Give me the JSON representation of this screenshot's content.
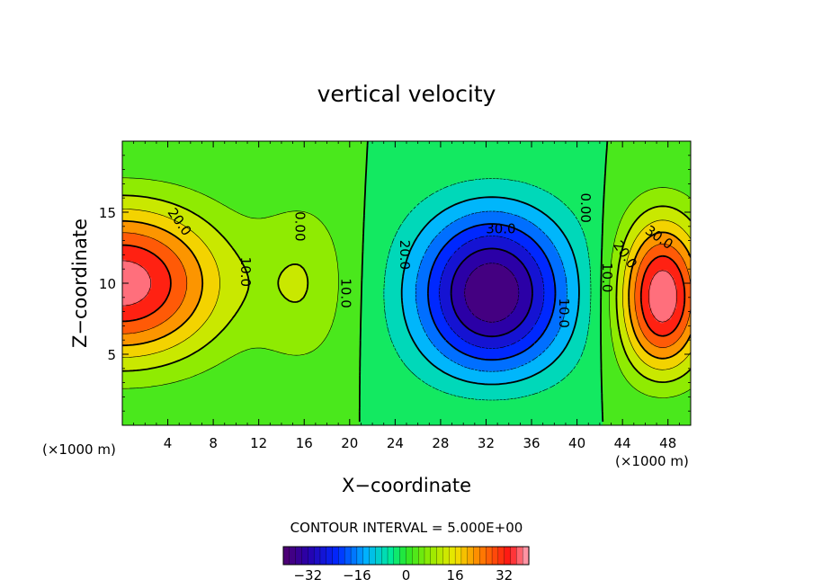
{
  "chart_data": {
    "type": "heatmap",
    "title": "vertical velocity",
    "xlabel": "X−coordinate",
    "ylabel": "Z−coordinate",
    "x_unit_left": "(×1000 m)",
    "x_unit_right": "(×1000 m)",
    "xlim": [
      0,
      50
    ],
    "ylim": [
      0,
      20
    ],
    "x_ticks": [
      "4",
      "8",
      "12",
      "16",
      "20",
      "24",
      "28",
      "32",
      "36",
      "40",
      "44",
      "48"
    ],
    "x_tick_values": [
      4,
      8,
      12,
      16,
      20,
      24,
      28,
      32,
      36,
      40,
      44,
      48
    ],
    "y_ticks": [
      "5",
      "10",
      "15"
    ],
    "y_tick_values": [
      5,
      10,
      15
    ],
    "contour_interval_text": "CONTOUR INTERVAL = 5.000E+00",
    "contour_interval": 5,
    "colorbar_range": [
      -40,
      40
    ],
    "colorbar_ticks": [
      "−32",
      "−16",
      "0",
      "16",
      "32"
    ],
    "colorbar_tick_values": [
      -32,
      -16,
      0,
      16,
      32
    ],
    "contour_labels": [
      {
        "text": "20.0",
        "x": 5.0,
        "z": 14.3,
        "angle": 55
      },
      {
        "text": "10.0",
        "x": 10.8,
        "z": 10.8,
        "angle": 90
      },
      {
        "text": "0.00",
        "x": 15.6,
        "z": 14.0,
        "angle": 90
      },
      {
        "text": "10.0",
        "x": 19.6,
        "z": 9.3,
        "angle": 90
      },
      {
        "text": "20.0",
        "x": 24.8,
        "z": 12.0,
        "angle": 90
      },
      {
        "text": "30.0",
        "x": 33.3,
        "z": 13.8,
        "angle": 0
      },
      {
        "text": "10.0",
        "x": 38.8,
        "z": 7.9,
        "angle": 90
      },
      {
        "text": "0.00",
        "x": 40.7,
        "z": 15.3,
        "angle": 90
      },
      {
        "text": "10.0",
        "x": 42.6,
        "z": 10.4,
        "angle": 90
      },
      {
        "text": "20.0",
        "x": 44.2,
        "z": 12.0,
        "angle": 55
      },
      {
        "text": "30.0",
        "x": 47.2,
        "z": 13.2,
        "angle": 35
      }
    ],
    "features": [
      {
        "name": "updraft-left",
        "x": 0.0,
        "z": 10.0,
        "peak": 38
      },
      {
        "name": "downdraft-center",
        "x": 32.5,
        "z": 8.5,
        "peak": -40
      },
      {
        "name": "updraft-right",
        "x": 47.5,
        "z": 8.5,
        "peak": 40
      }
    ]
  }
}
